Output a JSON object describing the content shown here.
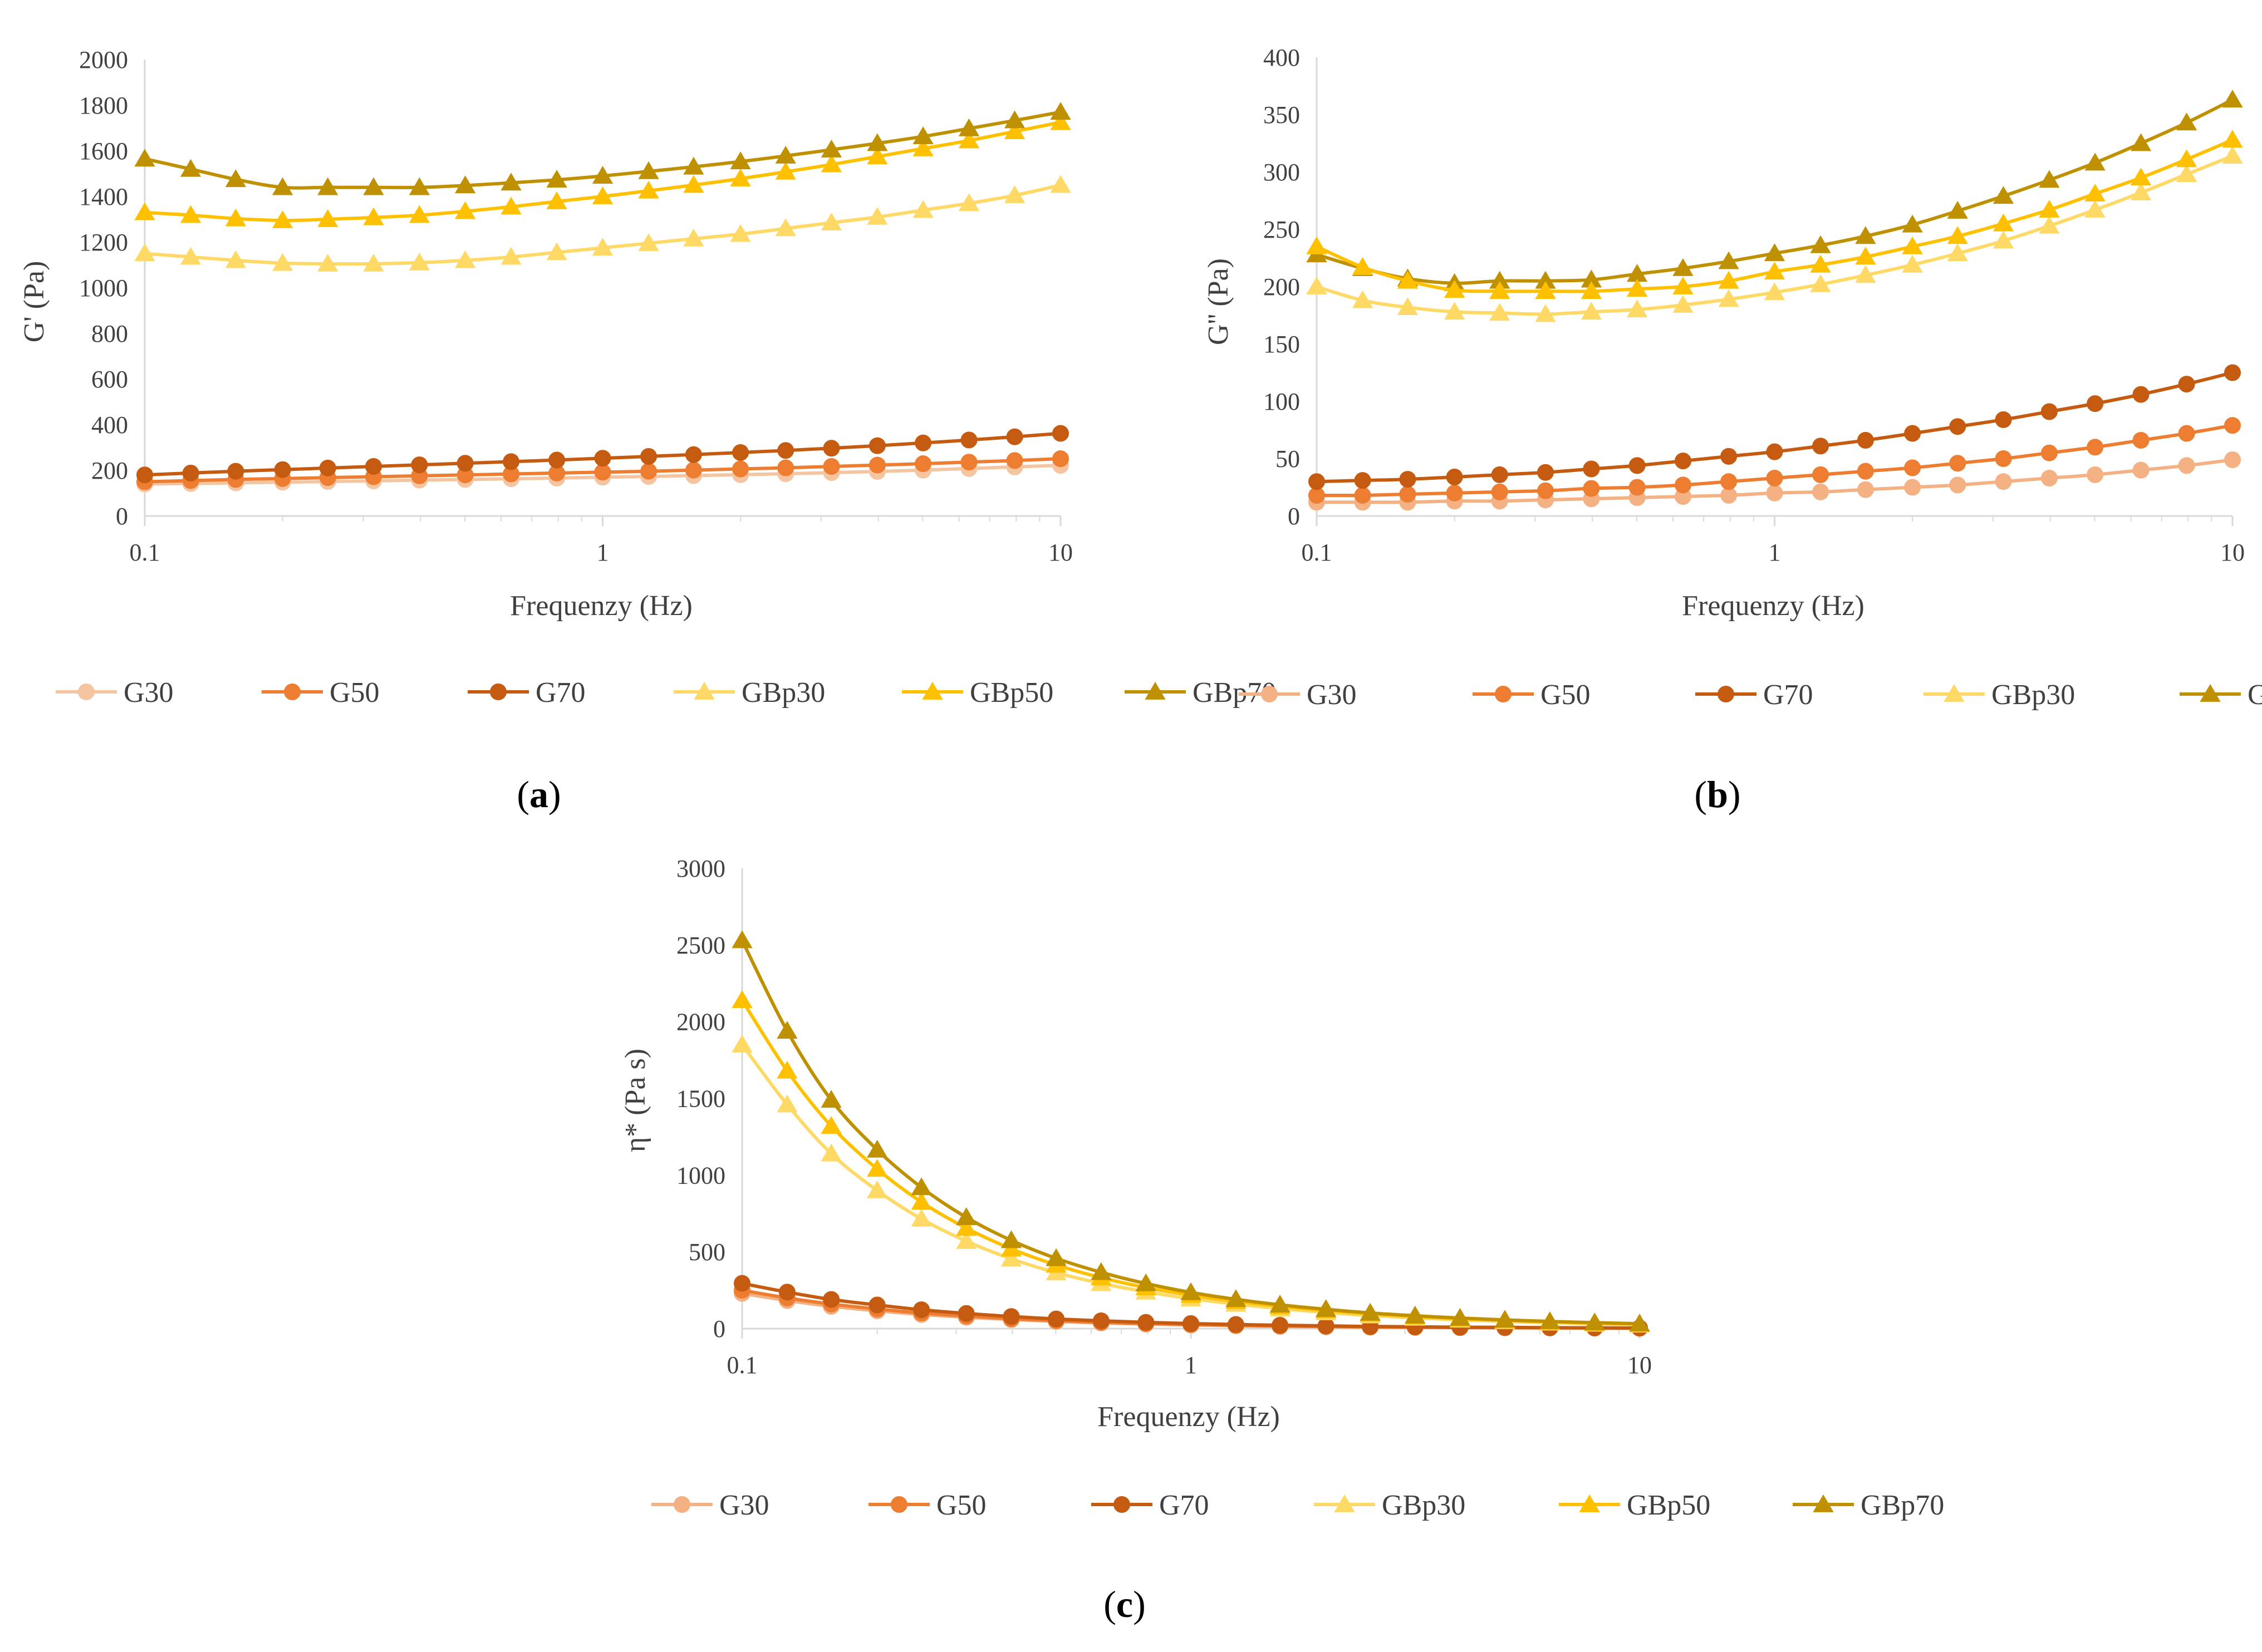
{
  "chart_data": [
    {
      "id": "a",
      "type": "line",
      "caption": "(a)",
      "xlabel": "Frequenzy (Hz)",
      "ylabel": "G' (Pa)",
      "x_scale": "log",
      "xlim": [
        0.1,
        10
      ],
      "ylim": [
        0,
        2000
      ],
      "x_ticks": [
        "0.1",
        "1",
        "10"
      ],
      "y_ticks": [
        "0",
        "200",
        "400",
        "600",
        "800",
        "1000",
        "1200",
        "1400",
        "1600",
        "1800",
        "2000"
      ],
      "grid": false,
      "legend_position": "bottom",
      "x": [
        0.1,
        0.126,
        0.158,
        0.2,
        0.251,
        0.316,
        0.398,
        0.501,
        0.631,
        0.794,
        1,
        1.26,
        1.58,
        2,
        2.51,
        3.16,
        3.98,
        5.01,
        6.31,
        7.94,
        10
      ],
      "series": [
        {
          "name": "G30",
          "marker": "circle",
          "color": "#f5c4a1",
          "values": [
            140,
            142,
            145,
            148,
            151,
            154,
            157,
            160,
            163,
            166,
            170,
            173,
            177,
            181,
            185,
            190,
            195,
            201,
            208,
            215,
            222
          ]
        },
        {
          "name": "G50",
          "marker": "circle",
          "color": "#ed7d31",
          "values": [
            150,
            155,
            160,
            164,
            168,
            172,
            176,
            180,
            184,
            188,
            192,
            196,
            201,
            206,
            211,
            217,
            223,
            229,
            236,
            243,
            251
          ]
        },
        {
          "name": "G70",
          "marker": "circle",
          "color": "#c55a11",
          "values": [
            180,
            188,
            196,
            203,
            210,
            217,
            224,
            231,
            238,
            245,
            253,
            261,
            269,
            278,
            287,
            297,
            308,
            320,
            333,
            347,
            362
          ]
        },
        {
          "name": "GBp30",
          "marker": "triangle",
          "color": "#ffd966",
          "values": [
            1150,
            1135,
            1120,
            1108,
            1105,
            1105,
            1110,
            1120,
            1135,
            1155,
            1175,
            1195,
            1215,
            1235,
            1260,
            1285,
            1310,
            1340,
            1370,
            1405,
            1450
          ]
        },
        {
          "name": "GBp50",
          "marker": "triangle",
          "color": "#ffc000",
          "values": [
            1330,
            1318,
            1303,
            1295,
            1300,
            1308,
            1318,
            1335,
            1355,
            1378,
            1400,
            1425,
            1450,
            1478,
            1508,
            1540,
            1575,
            1610,
            1645,
            1685,
            1725
          ]
        },
        {
          "name": "GBp70",
          "marker": "triangle",
          "color": "#bf9000",
          "values": [
            1565,
            1520,
            1475,
            1440,
            1440,
            1440,
            1440,
            1448,
            1460,
            1473,
            1490,
            1510,
            1530,
            1553,
            1578,
            1605,
            1633,
            1663,
            1698,
            1733,
            1770
          ]
        }
      ]
    },
    {
      "id": "b",
      "type": "line",
      "caption": "(b)",
      "xlabel": "Frequenzy (Hz)",
      "ylabel": "G'' (Pa)",
      "x_scale": "log",
      "xlim": [
        0.1,
        10
      ],
      "ylim": [
        0,
        400
      ],
      "x_ticks": [
        "0.1",
        "1",
        "10"
      ],
      "y_ticks": [
        "0",
        "50",
        "100",
        "150",
        "200",
        "250",
        "300",
        "350",
        "400"
      ],
      "grid": false,
      "legend_position": "bottom",
      "x": [
        0.1,
        0.126,
        0.158,
        0.2,
        0.251,
        0.316,
        0.398,
        0.501,
        0.631,
        0.794,
        1,
        1.26,
        1.58,
        2,
        2.51,
        3.16,
        3.98,
        5.01,
        6.31,
        7.94,
        10
      ],
      "series": [
        {
          "name": "G30",
          "marker": "circle",
          "color": "#f4b183",
          "values": [
            12,
            12,
            12,
            13,
            13,
            14,
            15,
            16,
            17,
            18,
            20,
            21,
            23,
            25,
            27,
            30,
            33,
            36,
            40,
            44,
            49
          ]
        },
        {
          "name": "G50",
          "marker": "circle",
          "color": "#ed7d31",
          "values": [
            18,
            18,
            19,
            20,
            21,
            22,
            24,
            25,
            27,
            30,
            33,
            36,
            39,
            42,
            46,
            50,
            55,
            60,
            66,
            72,
            79
          ]
        },
        {
          "name": "G70",
          "marker": "circle",
          "color": "#c55a11",
          "values": [
            30,
            31,
            32,
            34,
            36,
            38,
            41,
            44,
            48,
            52,
            56,
            61,
            66,
            72,
            78,
            84,
            91,
            98,
            106,
            115,
            125
          ]
        },
        {
          "name": "GBp30",
          "marker": "triangle",
          "color": "#ffd966",
          "values": [
            200,
            188,
            182,
            178,
            177,
            176,
            178,
            180,
            184,
            189,
            195,
            202,
            210,
            219,
            229,
            240,
            253,
            267,
            282,
            298,
            314
          ]
        },
        {
          "name": "GBp50",
          "marker": "triangle",
          "color": "#bf9000",
          "values": [
            228,
            216,
            207,
            203,
            205,
            205,
            206,
            211,
            216,
            222,
            229,
            236,
            244,
            254,
            266,
            279,
            293,
            308,
            325,
            343,
            363
          ]
        },
        {
          "name": "GBp70",
          "marker": "triangle",
          "color": "#ffc000",
          "values": [
            235,
            217,
            205,
            197,
            196,
            196,
            196,
            198,
            200,
            205,
            213,
            219,
            226,
            235,
            244,
            255,
            267,
            281,
            295,
            311,
            328
          ]
        }
      ]
    },
    {
      "id": "c",
      "type": "line",
      "caption": "(c)",
      "xlabel": "Frequenzy (Hz)",
      "ylabel": "η* (Pa s)",
      "x_scale": "log",
      "xlim": [
        0.1,
        10
      ],
      "ylim": [
        0,
        3000
      ],
      "x_ticks": [
        "0.1",
        "1",
        "10"
      ],
      "y_ticks": [
        "0",
        "500",
        "1000",
        "1500",
        "2000",
        "2500",
        "3000"
      ],
      "grid": false,
      "legend_position": "bottom",
      "x": [
        0.1,
        0.126,
        0.158,
        0.2,
        0.251,
        0.316,
        0.398,
        0.501,
        0.631,
        0.794,
        1,
        1.26,
        1.58,
        2,
        2.51,
        3.16,
        3.98,
        5.01,
        6.31,
        7.94,
        10
      ],
      "series": [
        {
          "name": "G30",
          "marker": "circle",
          "color": "#f4b183",
          "values": [
            230,
            183,
            145,
            116,
            92,
            74,
            59,
            47,
            37,
            30,
            24,
            19,
            15,
            12,
            10,
            8,
            6,
            5,
            4,
            3,
            2
          ]
        },
        {
          "name": "G50",
          "marker": "circle",
          "color": "#ed7d31",
          "values": [
            250,
            200,
            160,
            128,
            102,
            82,
            65,
            52,
            41,
            33,
            27,
            21,
            17,
            14,
            11,
            9,
            7,
            6,
            5,
            4,
            3
          ]
        },
        {
          "name": "G70",
          "marker": "circle",
          "color": "#c55a11",
          "values": [
            295,
            238,
            190,
            154,
            123,
            99,
            79,
            63,
            51,
            41,
            33,
            27,
            22,
            18,
            14,
            12,
            9,
            8,
            6,
            5,
            4
          ]
        },
        {
          "name": "GBp30",
          "marker": "triangle",
          "color": "#ffd966",
          "values": [
            1850,
            1460,
            1140,
            900,
            715,
            570,
            455,
            365,
            295,
            240,
            195,
            160,
            130,
            105,
            85,
            70,
            57,
            47,
            38,
            31,
            25
          ]
        },
        {
          "name": "GBp50",
          "marker": "triangle",
          "color": "#ffc000",
          "values": [
            2140,
            1680,
            1320,
            1040,
            825,
            655,
            520,
            415,
            332,
            268,
            218,
            178,
            145,
            118,
            96,
            79,
            65,
            53,
            44,
            36,
            30
          ]
        },
        {
          "name": "GBp70",
          "marker": "triangle",
          "color": "#bf9000",
          "values": [
            2530,
            1940,
            1490,
            1165,
            920,
            725,
            575,
            458,
            367,
            294,
            236,
            191,
            155,
            126,
            102,
            84,
            69,
            57,
            47,
            39,
            32
          ]
        }
      ]
    }
  ]
}
